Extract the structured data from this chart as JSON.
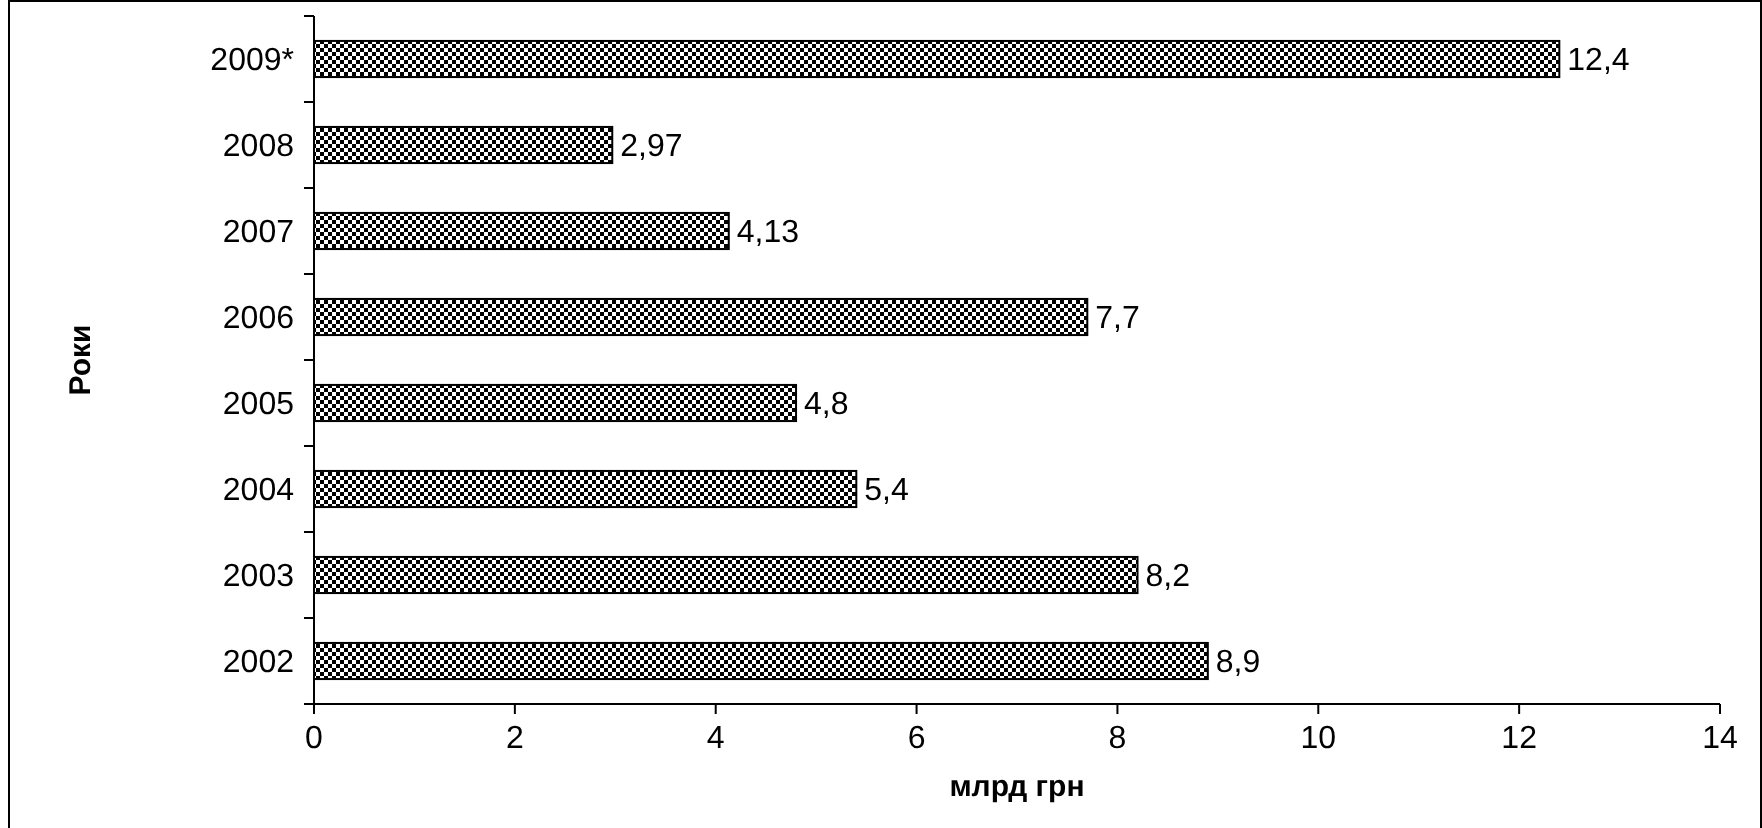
{
  "chart_data": {
    "type": "bar",
    "orientation": "horizontal",
    "categories": [
      "2009*",
      "2008",
      "2007",
      "2006",
      "2005",
      "2004",
      "2003",
      "2002"
    ],
    "values": [
      12.4,
      2.97,
      4.13,
      7.7,
      4.8,
      5.4,
      8.2,
      8.9
    ],
    "value_labels": [
      "12,4",
      "2,97",
      "4,13",
      "7,7",
      "4,8",
      "5,4",
      "8,2",
      "8,9"
    ],
    "color": "#000000",
    "xlim": [
      0,
      14
    ],
    "xticks": [
      0,
      2,
      4,
      6,
      8,
      10,
      12,
      14
    ],
    "xlabel": "млрд грн",
    "ylabel": "Роки",
    "grid": false
  }
}
